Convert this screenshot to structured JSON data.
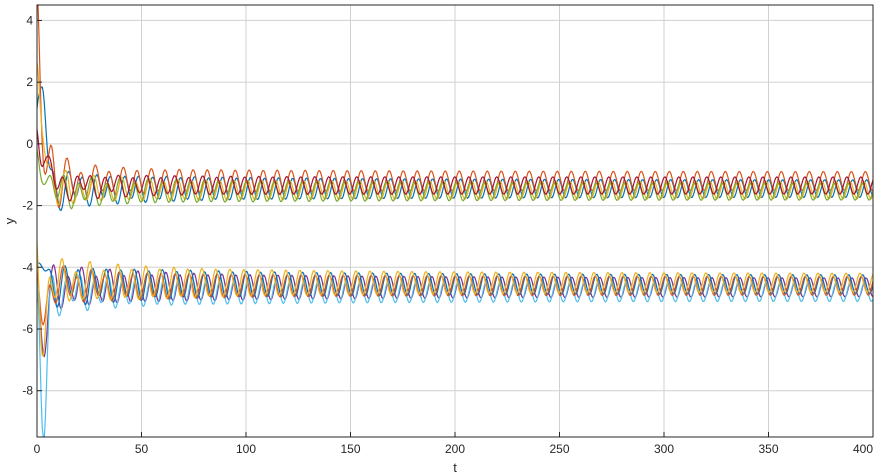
{
  "chart_data": {
    "type": "line",
    "title": "",
    "xlabel": "t",
    "ylabel": "y",
    "xlim": [
      0,
      400
    ],
    "ylim": [
      -9.5,
      4.5
    ],
    "xticks": [
      0,
      50,
      100,
      150,
      200,
      250,
      300,
      350,
      400
    ],
    "yticks": [
      -8,
      -6,
      -4,
      -2,
      0,
      2,
      4
    ],
    "grid": true,
    "legend": "none",
    "oscillation_period": 6.7,
    "series": [
      {
        "color": "#0072BD",
        "group": "upper",
        "y0": 0.6,
        "overshoot": 2.1,
        "mean": -1.45,
        "amplitude_early": 0.45,
        "amplitude_late": 0.28,
        "phase": 0.0
      },
      {
        "color": "#D95319",
        "group": "upper",
        "y0": 4.2,
        "overshoot": 1.6,
        "mean": -1.2,
        "amplitude_early": 0.42,
        "amplitude_late": 0.3,
        "phase": 0.6
      },
      {
        "color": "#EDB120",
        "group": "upper",
        "y0": 1.5,
        "overshoot": 1.7,
        "mean": -1.5,
        "amplitude_early": 0.35,
        "amplitude_late": 0.28,
        "phase": 1.2
      },
      {
        "color": "#77AC30",
        "group": "upper",
        "y0": -0.8,
        "overshoot": -0.3,
        "mean": -1.55,
        "amplitude_early": 0.4,
        "amplitude_late": 0.27,
        "phase": 2.0
      },
      {
        "color": "#A2142F",
        "group": "upper",
        "y0": 0.3,
        "overshoot": 0.5,
        "mean": -1.35,
        "amplitude_early": 0.3,
        "amplitude_late": 0.28,
        "phase": 2.6
      },
      {
        "color": "#7E2F8E",
        "group": "lower",
        "y0": -4.5,
        "overshoot": -6.8,
        "mean": -4.65,
        "amplitude_early": 0.55,
        "amplitude_late": 0.3,
        "phase": 0.3
      },
      {
        "color": "#4DBEEE",
        "group": "lower",
        "y0": -4.0,
        "overshoot": -9.3,
        "mean": -4.8,
        "amplitude_early": 0.5,
        "amplitude_late": 0.3,
        "phase": 1.0
      },
      {
        "color": "#0072BD",
        "group": "lower",
        "y0": -4.8,
        "overshoot": -3.9,
        "mean": -4.55,
        "amplitude_early": 0.55,
        "amplitude_late": 0.3,
        "phase": 1.8
      },
      {
        "color": "#D95319",
        "group": "lower",
        "y0": -4.6,
        "overshoot": -5.5,
        "mean": -4.6,
        "amplitude_early": 0.45,
        "amplitude_late": 0.3,
        "phase": 2.4
      },
      {
        "color": "#EDB120",
        "group": "lower",
        "y0": -3.2,
        "overshoot": -5.8,
        "mean": -4.5,
        "amplitude_early": 0.6,
        "amplitude_late": 0.3,
        "phase": 3.0
      }
    ]
  }
}
